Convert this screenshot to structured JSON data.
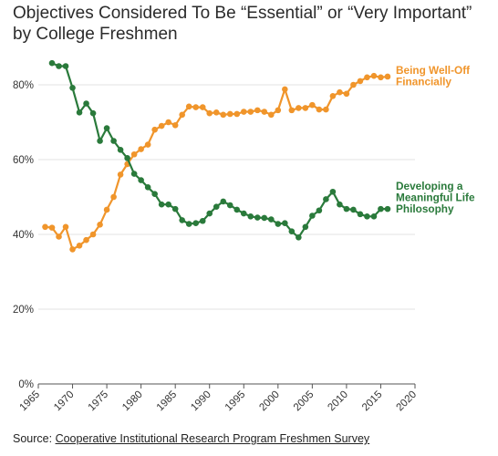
{
  "title_line1": "Objectives Considered To Be “Essential” or “Very Important”",
  "title_line2": "by College Freshmen",
  "source_prefix": "Source: ",
  "source_link": "Cooperative Institutional Research Program Freshmen Survey",
  "colors": {
    "financial": "#f0952b",
    "philosophy": "#2a7a3b",
    "grid": "#e3e3e3",
    "axis": "#555555"
  },
  "chart_data": {
    "type": "line",
    "xlim": [
      1965,
      2020
    ],
    "ylim": [
      0,
      0.9
    ],
    "xticks": [
      1965,
      1970,
      1975,
      1980,
      1985,
      1990,
      1995,
      2000,
      2005,
      2010,
      2015,
      2020
    ],
    "yticks": [
      0,
      0.2,
      0.4,
      0.6,
      0.8
    ],
    "ytick_labels": [
      "0%",
      "20%",
      "40%",
      "60%",
      "80%"
    ],
    "grid": "horizontal",
    "series": [
      {
        "name": "Being Well-Off Financially",
        "label_lines": [
          "Being Well-Off",
          "Financially"
        ],
        "color": "#f0952b",
        "x": [
          1966,
          1967,
          1968,
          1969,
          1970,
          1971,
          1972,
          1973,
          1974,
          1975,
          1976,
          1977,
          1978,
          1979,
          1980,
          1981,
          1982,
          1983,
          1984,
          1985,
          1986,
          1987,
          1988,
          1989,
          1990,
          1991,
          1992,
          1993,
          1994,
          1995,
          1996,
          1997,
          1998,
          1999,
          2000,
          2001,
          2002,
          2003,
          2004,
          2005,
          2006,
          2007,
          2008,
          2009,
          2010,
          2011,
          2012,
          2013,
          2014,
          2015,
          2016
        ],
        "y": [
          0.42,
          0.418,
          0.394,
          0.42,
          0.36,
          0.37,
          0.385,
          0.4,
          0.426,
          0.466,
          0.5,
          0.56,
          0.588,
          0.614,
          0.628,
          0.64,
          0.68,
          0.69,
          0.7,
          0.692,
          0.72,
          0.742,
          0.74,
          0.74,
          0.724,
          0.726,
          0.72,
          0.722,
          0.722,
          0.728,
          0.728,
          0.732,
          0.728,
          0.72,
          0.732,
          0.788,
          0.732,
          0.738,
          0.738,
          0.746,
          0.734,
          0.734,
          0.77,
          0.78,
          0.776,
          0.8,
          0.81,
          0.82,
          0.824,
          0.82,
          0.822
        ]
      },
      {
        "name": "Developing a Meaningful Life Philosophy",
        "label_lines": [
          "Developing a",
          "Meaningful Life",
          "Philosophy"
        ],
        "color": "#2a7a3b",
        "x": [
          1967,
          1968,
          1969,
          1970,
          1971,
          1972,
          1973,
          1974,
          1975,
          1976,
          1977,
          1978,
          1979,
          1980,
          1981,
          1982,
          1983,
          1984,
          1985,
          1986,
          1987,
          1988,
          1989,
          1990,
          1991,
          1992,
          1993,
          1994,
          1995,
          1996,
          1997,
          1998,
          1999,
          2000,
          2001,
          2002,
          2003,
          2004,
          2005,
          2006,
          2007,
          2008,
          2009,
          2010,
          2011,
          2012,
          2013,
          2014,
          2015,
          2016
        ],
        "y": [
          0.858,
          0.85,
          0.85,
          0.792,
          0.726,
          0.75,
          0.724,
          0.65,
          0.684,
          0.65,
          0.626,
          0.604,
          0.562,
          0.545,
          0.526,
          0.508,
          0.48,
          0.48,
          0.468,
          0.438,
          0.428,
          0.43,
          0.436,
          0.456,
          0.474,
          0.488,
          0.478,
          0.466,
          0.456,
          0.448,
          0.445,
          0.444,
          0.44,
          0.428,
          0.43,
          0.408,
          0.392,
          0.42,
          0.45,
          0.464,
          0.494,
          0.514,
          0.48,
          0.468,
          0.466,
          0.454,
          0.448,
          0.448,
          0.468,
          0.468
        ]
      }
    ]
  }
}
